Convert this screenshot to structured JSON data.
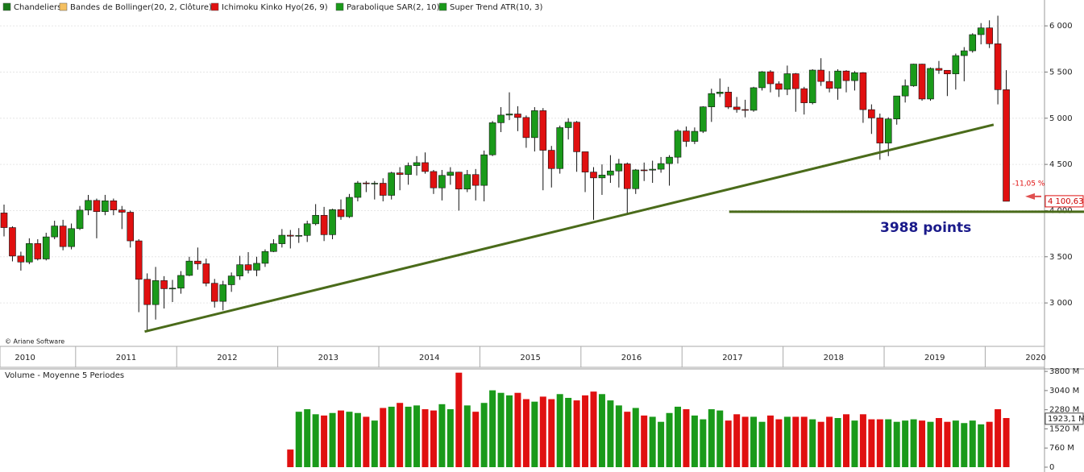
{
  "chart_data": {
    "type": "candlestick",
    "legend": [
      {
        "name": "Chandeliers",
        "color": "#1a7a1a"
      },
      {
        "name": "Bandes de Bollinger(20, 2, Clôture)",
        "color": "#f5c060"
      },
      {
        "name": "Ichimoku Kinko Hyo(26, 9)",
        "color": "#e01010"
      },
      {
        "name": "Parabolique SAR(2, 10)",
        "color": "#1a9a1a"
      },
      {
        "name": "Super Trend ATR(10, 3)",
        "color": "#1a9a1a"
      }
    ],
    "copyright": "© Ariane Software",
    "years": [
      "2010",
      "2011",
      "2012",
      "2013",
      "2014",
      "2015",
      "2016",
      "2017",
      "2018",
      "2019",
      "2020"
    ],
    "up_color": "#1a9a1a",
    "down_color": "#e01010",
    "open": [
      3974,
      3816,
      3508,
      3443,
      3643,
      3476,
      3715,
      3833,
      3610,
      3805,
      4005,
      4110,
      3989,
      4106,
      4007,
      3982,
      3672,
      3256,
      2982,
      3242,
      3154,
      3160,
      3298,
      3453,
      3424,
      3213,
      3017,
      3197,
      3292,
      3414,
      3355,
      3429,
      3557,
      3641,
      3733,
      3723,
      3731,
      3857,
      3949,
      3739,
      4010,
      3934,
      4143,
      4299,
      4295,
      4296,
      4165,
      4408,
      4391,
      4487,
      4519,
      4423,
      4246,
      4381,
      4416,
      4233,
      4390,
      4273,
      4604,
      4951,
      5034,
      5046,
      5008,
      4790,
      5082,
      4653,
      4455,
      4898,
      4957,
      4637,
      4417,
      4354,
      4385,
      4429,
      4506,
      4237,
      4440,
      4438,
      4448,
      4509,
      4578,
      4862,
      4749,
      4858,
      5123,
      5267,
      5283,
      5121,
      5094,
      5086,
      5330,
      5503,
      5373,
      5313,
      5482,
      5320,
      5167,
      5521,
      5398,
      5324,
      5511,
      5407,
      5493,
      5093,
      5003,
      4731,
      4992,
      5241,
      5351,
      5586,
      5208,
      5539,
      5519,
      5480,
      5678,
      5730,
      5905,
      5978,
      5806,
      5309
    ],
    "high": [
      4065,
      3830,
      3555,
      3700,
      3690,
      3760,
      3890,
      3900,
      3860,
      4050,
      4170,
      4130,
      4170,
      4130,
      4050,
      4000,
      3690,
      3320,
      3390,
      3290,
      3250,
      3345,
      3500,
      3600,
      3480,
      3260,
      3240,
      3330,
      3510,
      3550,
      3500,
      3580,
      3690,
      3800,
      3790,
      3810,
      3890,
      4070,
      4040,
      4020,
      4120,
      4180,
      4320,
      4320,
      4320,
      4350,
      4420,
      4470,
      4520,
      4590,
      4630,
      4440,
      4440,
      4470,
      4420,
      4440,
      4450,
      4650,
      4970,
      5120,
      5280,
      5130,
      5030,
      5120,
      5110,
      4700,
      4920,
      5000,
      4970,
      4630,
      4470,
      4500,
      4600,
      4560,
      4520,
      4450,
      4520,
      4540,
      4580,
      4600,
      4880,
      4910,
      4900,
      5130,
      5320,
      5430,
      5340,
      5230,
      5200,
      5340,
      5510,
      5520,
      5400,
      5570,
      5490,
      5340,
      5530,
      5650,
      5510,
      5530,
      5520,
      5510,
      5500,
      5150,
      5050,
      5010,
      5240,
      5420,
      5590,
      5590,
      5550,
      5620,
      5500,
      5700,
      5770,
      5920,
      6030,
      6060,
      6110,
      5520
    ],
    "low": [
      3720,
      3450,
      3350,
      3420,
      3460,
      3460,
      3690,
      3570,
      3580,
      3790,
      3950,
      3700,
      3950,
      3950,
      3800,
      3600,
      2900,
      2690,
      2820,
      2940,
      3010,
      3100,
      3290,
      3360,
      3180,
      2950,
      2920,
      3120,
      3250,
      3320,
      3290,
      3390,
      3550,
      3600,
      3590,
      3650,
      3660,
      3840,
      3670,
      3690,
      3900,
      3920,
      4100,
      4200,
      4120,
      4100,
      4120,
      4220,
      4280,
      4380,
      4400,
      4180,
      4110,
      4280,
      4000,
      4200,
      4110,
      4100,
      4590,
      4850,
      4980,
      4860,
      4680,
      4640,
      4220,
      4250,
      4400,
      4770,
      4420,
      4200,
      3900,
      4170,
      4300,
      4250,
      3960,
      4180,
      4320,
      4300,
      4410,
      4270,
      4510,
      4690,
      4720,
      4840,
      4960,
      5230,
      5100,
      5060,
      5010,
      5070,
      5300,
      5280,
      5230,
      5250,
      5070,
      5040,
      5150,
      5350,
      5280,
      5200,
      5280,
      5300,
      4950,
      4830,
      4550,
      4590,
      4930,
      5170,
      5340,
      5190,
      5190,
      5480,
      5240,
      5310,
      5400,
      5710,
      5800,
      5760,
      5150,
      4100
    ],
    "close": [
      3816,
      3508,
      3443,
      3643,
      3476,
      3715,
      3833,
      3610,
      3805,
      4005,
      4110,
      3989,
      4106,
      4007,
      3982,
      3672,
      3256,
      2982,
      3242,
      3154,
      3160,
      3298,
      3453,
      3424,
      3213,
      3017,
      3197,
      3292,
      3414,
      3355,
      3429,
      3557,
      3641,
      3733,
      3723,
      3731,
      3857,
      3949,
      3739,
      4010,
      3934,
      4143,
      4299,
      4295,
      4296,
      4165,
      4408,
      4391,
      4487,
      4519,
      4423,
      4246,
      4381,
      4416,
      4233,
      4390,
      4273,
      4604,
      4951,
      5034,
      5046,
      5008,
      4790,
      5082,
      4653,
      4455,
      4898,
      4957,
      4637,
      4417,
      4354,
      4385,
      4429,
      4506,
      4237,
      4440,
      4438,
      4448,
      4509,
      4578,
      4862,
      4749,
      4858,
      5123,
      5267,
      5283,
      5121,
      5094,
      5086,
      5330,
      5503,
      5373,
      5313,
      5482,
      5320,
      5167,
      5521,
      5398,
      5324,
      5511,
      5407,
      5493,
      5093,
      5003,
      4731,
      4992,
      5241,
      5351,
      5586,
      5208,
      5539,
      5519,
      5480,
      5678,
      5730,
      5905,
      5978,
      5806,
      5309,
      4100.63
    ],
    "ylim": [
      2530,
      6280
    ],
    "yticks": [
      {
        "value": 3000,
        "label": "3 000"
      },
      {
        "value": 3500,
        "label": "3 500"
      },
      {
        "value": 4000,
        "label": "4 000"
      },
      {
        "value": 4500,
        "label": "4 500"
      },
      {
        "value": 5000,
        "label": "5 000"
      },
      {
        "value": 5500,
        "label": "5 500"
      },
      {
        "value": 6000,
        "label": "6 000"
      }
    ],
    "grid": true,
    "last_price": {
      "value": 4100.63,
      "label": "4 100,63"
    },
    "last_change": "-11,05 %",
    "trend_lines": [
      {
        "x": [
          16.7,
          117.5
        ],
        "y": [
          2690,
          4930
        ],
        "color": "#4a6b1a"
      },
      {
        "x": [
          86.1,
          128.3
        ],
        "y": [
          3988,
          3988
        ],
        "color": "#4a6b1a"
      }
    ],
    "annotation": "3988 points",
    "volume_title": "Volume  - Moyenne 5 Periodes",
    "volume": [
      null,
      null,
      null,
      null,
      null,
      null,
      null,
      null,
      null,
      null,
      null,
      null,
      null,
      null,
      null,
      null,
      null,
      null,
      null,
      null,
      null,
      null,
      null,
      null,
      null,
      null,
      null,
      null,
      null,
      null,
      null,
      null,
      null,
      null,
      700,
      2200,
      2300,
      2100,
      2050,
      2150,
      2250,
      2200,
      2150,
      2000,
      1850,
      2350,
      2400,
      2550,
      2400,
      2450,
      2300,
      2250,
      2500,
      2300,
      3750,
      2450,
      2200,
      2550,
      3050,
      2950,
      2850,
      2950,
      2700,
      2600,
      2800,
      2700,
      2900,
      2750,
      2650,
      2850,
      3000,
      2900,
      2650,
      2450,
      2200,
      2350,
      2050,
      2000,
      1800,
      2150,
      2400,
      2300,
      2050,
      1900,
      2300,
      2250,
      1850,
      2100,
      2000,
      2000,
      1800,
      2050,
      1900,
      2000,
      2000,
      2000,
      1900,
      1800,
      2000,
      1950,
      2100,
      1850,
      2100,
      1900,
      1900,
      1900,
      1800,
      1850,
      1900,
      1850,
      1800,
      1950,
      1800,
      1850,
      1750,
      1850,
      1700,
      1800,
      2300,
      1950
    ],
    "volume_ylim": [
      0,
      3900
    ],
    "volume_yticks": [
      0,
      {
        "value": 760,
        "label": "760 M"
      },
      {
        "value": 1520,
        "label": "1520 M"
      },
      {
        "value": 2280,
        "label": "2280 M"
      },
      {
        "value": 3040,
        "label": "3040 M"
      },
      {
        "value": 3800,
        "label": "3800 M"
      }
    ],
    "volume_last": {
      "value": 1923.1,
      "label": "1923,1 M"
    }
  }
}
